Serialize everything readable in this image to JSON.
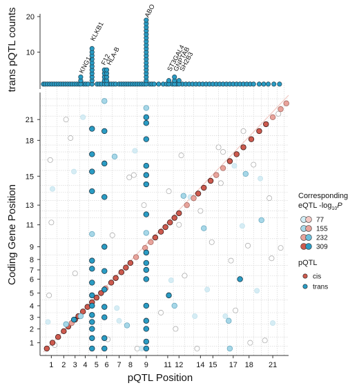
{
  "chart_data": [
    {
      "type": "scatter",
      "xlabel": "pQTL Position",
      "ylabel": "Coding Gene Position",
      "x_ticks": [
        "1",
        "2",
        "3",
        "4",
        "5",
        "6",
        "7",
        "8",
        "9",
        "11",
        "12",
        "14",
        "15",
        "17",
        "18",
        "21"
      ],
      "y_ticks": [
        "1",
        "2",
        "3",
        "4",
        "5",
        "6",
        "7",
        "8",
        "9",
        "11",
        "13",
        "15",
        "18",
        "21"
      ],
      "xlim": [
        0,
        22
      ],
      "ylim": [
        0,
        22.5
      ],
      "legend": {
        "size_title_1": "Corresponding",
        "size_title_2": "eQTL -log",
        "size_title_sub": "10",
        "size_title_3": "P",
        "sizes": [
          "77",
          "155",
          "232",
          "309"
        ],
        "type_title": "pQTL",
        "types": [
          "cis",
          "trans"
        ],
        "position": "right"
      },
      "colors": {
        "cis": "#cd5a4e",
        "cis_light": "#e9a39b",
        "trans": "#2a9cc4",
        "trans_light": "#a6d7e8",
        "outline": "#222222"
      },
      "grid": true,
      "diagonal": true,
      "series": [
        {
          "name": "cis",
          "points": [
            [
              0.6,
              0.6
            ],
            [
              1.1,
              1.1
            ],
            [
              1.6,
              1.6
            ],
            [
              2.1,
              2.1
            ],
            [
              2.5,
              2.5
            ],
            [
              2.8,
              2.8
            ],
            [
              3.1,
              3.1
            ],
            [
              3.4,
              3.4
            ],
            [
              3.8,
              3.8
            ],
            [
              4.2,
              4.2
            ],
            [
              4.6,
              4.6
            ],
            [
              5.0,
              5.0
            ],
            [
              5.4,
              5.4
            ],
            [
              5.8,
              5.8
            ],
            [
              6.3,
              6.3
            ],
            [
              6.7,
              6.7
            ],
            [
              7.2,
              7.2
            ],
            [
              7.6,
              7.6
            ],
            [
              8.0,
              8.0
            ],
            [
              8.5,
              8.5
            ],
            [
              9.3,
              9.3
            ],
            [
              9.8,
              9.8
            ],
            [
              10.2,
              10.2
            ],
            [
              10.7,
              10.7
            ],
            [
              11.1,
              11.1
            ],
            [
              11.5,
              11.5
            ],
            [
              11.9,
              11.9
            ],
            [
              12.3,
              12.3
            ],
            [
              13.0,
              13.0
            ],
            [
              13.6,
              13.6
            ],
            [
              14.0,
              14.0
            ],
            [
              14.5,
              14.5
            ],
            [
              15.1,
              15.1
            ],
            [
              15.6,
              15.6
            ],
            [
              16.2,
              16.2
            ],
            [
              16.8,
              16.8
            ],
            [
              17.4,
              17.4
            ],
            [
              18.0,
              18.0
            ],
            [
              18.7,
              18.7
            ],
            [
              19.4,
              19.4
            ],
            [
              20.0,
              20.0
            ],
            [
              20.6,
              20.6
            ],
            [
              21.3,
              21.3
            ],
            [
              21.8,
              21.8
            ]
          ],
          "intensity": [
            0.9,
            0.8,
            1,
            0.9,
            0.8,
            0.7,
            0.85,
            0.9,
            0.95,
            0.8,
            0.75,
            0.9,
            0.85,
            0.7,
            0.8,
            0.9,
            0.95,
            1,
            0.85,
            0.7,
            0.6,
            0.5,
            0.8,
            0.9,
            1,
            0.95,
            0.85,
            0.9,
            0.7,
            0.6,
            0.75,
            0.9,
            0.85,
            0.7,
            0.6,
            0.75,
            0.8,
            0.9,
            0.85,
            0.8,
            0.9,
            0.6,
            0.5,
            0.4
          ]
        },
        {
          "name": "trans",
          "points": [
            [
              4.6,
              0.6
            ],
            [
              4.6,
              1.5
            ],
            [
              4.6,
              2.3
            ],
            [
              4.6,
              2.9
            ],
            [
              4.6,
              3.5
            ],
            [
              4.6,
              4.3
            ],
            [
              4.6,
              5.2
            ],
            [
              4.6,
              6.3
            ],
            [
              4.6,
              7.5
            ],
            [
              4.6,
              8.2
            ],
            [
              4.6,
              10.5
            ],
            [
              4.6,
              14.2
            ],
            [
              4.6,
              15.9
            ],
            [
              4.6,
              17.4
            ],
            [
              4.6,
              19.6
            ],
            [
              5.7,
              0.6
            ],
            [
              5.7,
              1.5
            ],
            [
              5.7,
              3.3
            ],
            [
              5.7,
              4.2
            ],
            [
              5.7,
              5.7
            ],
            [
              5.7,
              7.3
            ],
            [
              5.7,
              9.4
            ],
            [
              5.7,
              13.7
            ],
            [
              5.7,
              16.6
            ],
            [
              5.7,
              19.4
            ],
            [
              5.7,
              22.0
            ],
            [
              9.4,
              0.6
            ],
            [
              9.4,
              1.2
            ],
            [
              9.4,
              2.3
            ],
            [
              9.4,
              3.0
            ],
            [
              9.4,
              4.3
            ],
            [
              9.4,
              6.6
            ],
            [
              9.4,
              7.4
            ],
            [
              9.4,
              8.0
            ],
            [
              9.4,
              8.9
            ],
            [
              9.4,
              10.6
            ],
            [
              9.4,
              12.2
            ],
            [
              9.4,
              14.8
            ],
            [
              9.4,
              15.6
            ],
            [
              9.4,
              16.4
            ],
            [
              9.4,
              18.7
            ],
            [
              9.4,
              20.1
            ],
            [
              9.4,
              20.6
            ],
            [
              9.4,
              21.4
            ],
            [
              3.0,
              3.1
            ],
            [
              3.6,
              3.4
            ],
            [
              2.3,
              2.7
            ],
            [
              7.7,
              2.6
            ],
            [
              11.4,
              5.2
            ],
            [
              11.9,
              4.3
            ],
            [
              14.5,
              11.0
            ],
            [
              16.7,
              3.0
            ],
            [
              16.8,
              0.6
            ],
            [
              17.7,
              6.6
            ],
            [
              18.2,
              15.7
            ],
            [
              19.6,
              11.7
            ],
            [
              6.6,
              17.2
            ],
            [
              12.7,
              13.8
            ]
          ],
          "intensity": [
            0.9,
            0.85,
            0.95,
            0.8,
            0.9,
            0.9,
            0.85,
            0.8,
            0.95,
            0.85,
            0.7,
            0.9,
            0.8,
            0.85,
            0.75,
            0.9,
            0.8,
            0.85,
            0.75,
            0.8,
            0.9,
            0.85,
            0.8,
            0.85,
            0.8,
            0.7,
            0.9,
            0.85,
            0.9,
            0.95,
            0.8,
            0.9,
            0.85,
            0.8,
            0.9,
            0.7,
            0.8,
            0.85,
            0.9,
            0.8,
            0.9,
            0.85,
            0.75,
            0.7,
            0.8,
            0.7,
            0.6,
            0.55,
            0.9,
            0.6,
            0.7,
            0.6,
            0.65,
            0.75,
            0.55,
            0.6,
            0.7,
            0.5
          ]
        },
        {
          "name": "faint",
          "points": [
            [
              1.1,
              14.4
            ],
            [
              1.0,
              11.5
            ],
            [
              0.8,
              5.2
            ],
            [
              0.7,
              2.9
            ],
            [
              2.7,
              18.8
            ],
            [
              3.1,
              7.1
            ],
            [
              3.0,
              15.9
            ],
            [
              7.9,
              15.4
            ],
            [
              8.3,
              15.6
            ],
            [
              8.4,
              17.7
            ],
            [
              9.2,
              13.0
            ],
            [
              11.4,
              14.2
            ],
            [
              11.6,
              6.5
            ],
            [
              12.0,
              2.3
            ],
            [
              12.3,
              11.3
            ],
            [
              13.7,
              3.4
            ],
            [
              13.9,
              0.6
            ],
            [
              14.2,
              12.5
            ],
            [
              14.8,
              5.7
            ],
            [
              15.2,
              9.8
            ],
            [
              16.0,
              14.9
            ],
            [
              16.4,
              3.4
            ],
            [
              16.9,
              8.2
            ],
            [
              17.3,
              3.9
            ],
            [
              17.9,
              11.2
            ],
            [
              18.4,
              9.5
            ],
            [
              18.6,
              1.1
            ],
            [
              19.2,
              5.6
            ],
            [
              19.9,
              1.3
            ],
            [
              20.5,
              8.4
            ],
            [
              20.6,
              2.8
            ],
            [
              21.1,
              20.9
            ],
            [
              21.3,
              9.3
            ],
            [
              7.0,
              3.0
            ],
            [
              6.0,
              1.4
            ],
            [
              6.4,
              10.4
            ],
            [
              6.8,
              4.1
            ],
            [
              1.3,
              0.9
            ],
            [
              0.9,
              16.9
            ],
            [
              3.8,
              20.6
            ],
            [
              2.3,
              20.4
            ],
            [
              8.6,
              0.6
            ],
            [
              9.0,
              0.6
            ],
            [
              10.7,
              3.7
            ],
            [
              12.8,
              6.9
            ],
            [
              13.3,
              13.7
            ],
            [
              15.8,
              18.0
            ],
            [
              16.2,
              17.6
            ],
            [
              17.2,
              16.4
            ],
            [
              18.0,
              19.4
            ],
            [
              18.9,
              16.5
            ],
            [
              19.5,
              15.3
            ],
            [
              20.3,
              13.6
            ],
            [
              12.5,
              17.3
            ]
          ]
        }
      ]
    },
    {
      "type": "bar",
      "ylabel": "trans pQTL counts",
      "y_ticks": [
        "10",
        "20"
      ],
      "ylim": [
        0,
        20
      ],
      "gene_labels": [
        "KNG1",
        "KLKB1",
        "F12",
        "HLA-B",
        "ABO",
        "ST3GAL4",
        "GNPTAB",
        "SH2B3"
      ],
      "peaks": [
        {
          "x": 3.6,
          "count": 3
        },
        {
          "x": 4.6,
          "count": 11
        },
        {
          "x": 5.7,
          "count": 5
        },
        {
          "x": 5.9,
          "count": 5
        },
        {
          "x": 9.4,
          "count": 19
        },
        {
          "x": 11.4,
          "count": 2
        },
        {
          "x": 11.9,
          "count": 3
        },
        {
          "x": 12.3,
          "count": 2
        }
      ],
      "baseline_x": [
        0.3,
        0.45,
        0.65,
        0.85,
        1.05,
        1.25,
        1.45,
        1.65,
        1.85,
        2.05,
        2.25,
        2.45,
        2.65,
        2.85,
        3.05,
        3.25,
        3.45,
        3.85,
        4.05,
        4.25,
        5.05,
        5.25,
        5.45,
        6.1,
        6.3,
        6.5,
        6.7,
        7.0,
        7.2,
        7.4,
        7.6,
        7.8,
        8.0,
        8.2,
        8.4,
        8.6,
        8.8,
        9.0,
        9.2,
        9.7,
        9.9,
        10.1,
        10.5,
        10.9,
        11.2,
        11.7,
        12.1,
        12.6,
        12.9,
        13.2,
        13.5,
        13.8,
        14.1,
        14.4,
        14.7,
        15.0,
        15.3,
        15.6,
        15.9,
        16.2,
        16.5,
        16.8,
        17.1,
        17.4,
        17.7,
        18.0,
        18.3,
        18.6,
        18.9,
        19.4,
        19.8,
        20.2,
        20.7,
        21.2
      ],
      "colors": {
        "dot": "#2a9cc4",
        "outline": "#1d3b4a"
      }
    }
  ]
}
